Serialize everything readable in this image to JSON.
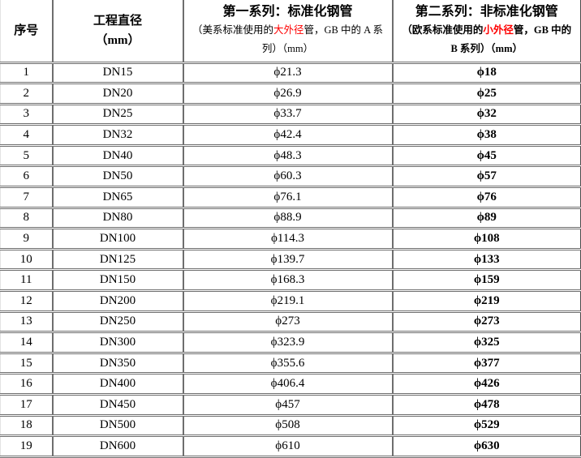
{
  "colors": {
    "text": "#000000",
    "highlight_red": "#ff0000",
    "grid_gray": "#6e6e6e",
    "outer_right_border": "#4a4a4a",
    "background": "#ffffff"
  },
  "table": {
    "columns": [
      {
        "title": "序号"
      },
      {
        "title": "工程直径",
        "title_line2": "（mm）"
      },
      {
        "title": "第一系列：标准化钢管",
        "sub_prefix": "（美系标准使用的",
        "sub_red": "大外径",
        "sub_suffix": "管，GB 中的 A 系列）（mm）"
      },
      {
        "title": "第二系列：非标准化钢管",
        "sub_prefix": "（欧系标准使用的",
        "sub_red": "小外径",
        "sub_suffix": "管，GB 中的 B 系列）（mm）"
      }
    ],
    "rows": [
      {
        "no": "1",
        "dn": "DN15",
        "d1": "ϕ21.3",
        "d2": "ϕ18"
      },
      {
        "no": "2",
        "dn": "DN20",
        "d1": "ϕ26.9",
        "d2": "ϕ25"
      },
      {
        "no": "3",
        "dn": "DN25",
        "d1": "ϕ33.7",
        "d2": "ϕ32"
      },
      {
        "no": "4",
        "dn": "DN32",
        "d1": "ϕ42.4",
        "d2": "ϕ38"
      },
      {
        "no": "5",
        "dn": "DN40",
        "d1": "ϕ48.3",
        "d2": "ϕ45"
      },
      {
        "no": "6",
        "dn": "DN50",
        "d1": "ϕ60.3",
        "d2": "ϕ57"
      },
      {
        "no": "7",
        "dn": "DN65",
        "d1": "ϕ76.1",
        "d2": "ϕ76"
      },
      {
        "no": "8",
        "dn": "DN80",
        "d1": "ϕ88.9",
        "d2": "ϕ89"
      },
      {
        "no": "9",
        "dn": "DN100",
        "d1": "ϕ114.3",
        "d2": "ϕ108"
      },
      {
        "no": "10",
        "dn": "DN125",
        "d1": "ϕ139.7",
        "d2": "ϕ133"
      },
      {
        "no": "11",
        "dn": "DN150",
        "d1": "ϕ168.3",
        "d2": "ϕ159"
      },
      {
        "no": "12",
        "dn": "DN200",
        "d1": "ϕ219.1",
        "d2": "ϕ219"
      },
      {
        "no": "13",
        "dn": "DN250",
        "d1": "ϕ273",
        "d2": "ϕ273"
      },
      {
        "no": "14",
        "dn": "DN300",
        "d1": "ϕ323.9",
        "d2": "ϕ325"
      },
      {
        "no": "15",
        "dn": "DN350",
        "d1": "ϕ355.6",
        "d2": "ϕ377"
      },
      {
        "no": "16",
        "dn": "DN400",
        "d1": "ϕ406.4",
        "d2": "ϕ426"
      },
      {
        "no": "17",
        "dn": "DN450",
        "d1": "ϕ457",
        "d2": "ϕ478"
      },
      {
        "no": "18",
        "dn": "DN500",
        "d1": "ϕ508",
        "d2": "ϕ529"
      },
      {
        "no": "19",
        "dn": "DN600",
        "d1": "ϕ610",
        "d2": "ϕ630"
      }
    ]
  }
}
